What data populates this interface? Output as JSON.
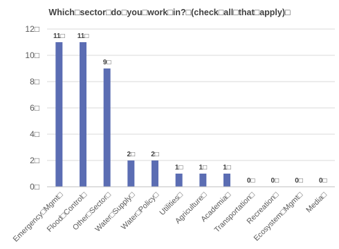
{
  "chart_data": {
    "type": "bar",
    "title": "Which□sector□do□you□work□in?□(check□all□that□apply)□",
    "categories": [
      "Emergency□Mgmt□",
      "Flood□Control□",
      "Other□Sector□",
      "Water□Supply□",
      "Water□Policy□",
      "Utilities□",
      "Agriculture□",
      "Academia□",
      "Transportation□",
      "Recreation□",
      "Ecosystem□Mgmt□",
      "Media□"
    ],
    "values": [
      11,
      11,
      9,
      2,
      2,
      1,
      1,
      1,
      0,
      0,
      0,
      0
    ],
    "data_labels": [
      "11□",
      "11□",
      "9□",
      "2□",
      "2□",
      "1□",
      "1□",
      "1□",
      "0□",
      "0□",
      "0□",
      "0□"
    ],
    "yticks": [
      0,
      2,
      4,
      6,
      8,
      10,
      12
    ],
    "ytick_labels": [
      "0□",
      "2□",
      "4□",
      "6□",
      "8□",
      "10□",
      "12□"
    ],
    "ylim": [
      0,
      12
    ],
    "xlabel": "",
    "ylabel": "",
    "grid": true,
    "legend": "none",
    "colors": {
      "bar": "#5B6DB3",
      "grid": "#D9D9D9",
      "axis": "#BFBFBF"
    }
  }
}
